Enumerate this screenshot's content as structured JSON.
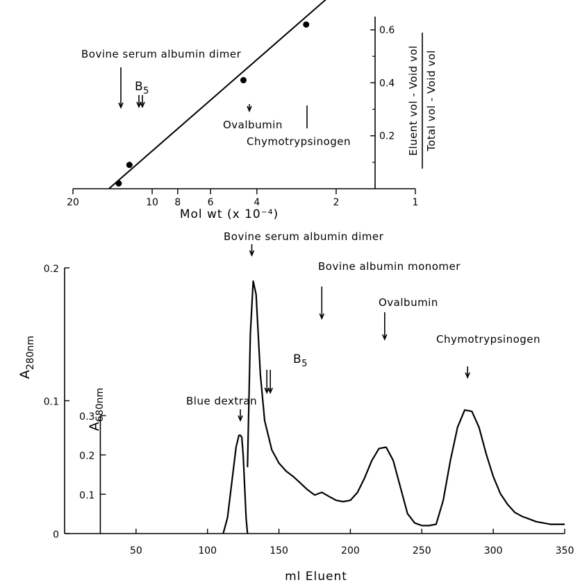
{
  "chart_data": [
    {
      "type": "scatter",
      "x_scale": "log",
      "x_reversed": true,
      "xlabel": "Mol  wt   (x 10⁻⁴)",
      "ylabel_numerator": "Eluent vol - Void vol",
      "ylabel_denominator": "Total vol - Void vol",
      "xlim": [
        1,
        20
      ],
      "ylim": [
        0,
        0.65
      ],
      "x_ticks": [
        20,
        10,
        8,
        6,
        4,
        2,
        1
      ],
      "y_ticks": [
        0.2,
        0.4,
        0.6
      ],
      "series": [
        {
          "x": [
            13.4,
            12.2,
            4.5,
            2.6
          ],
          "y": [
            0.02,
            0.09,
            0.41,
            0.62
          ]
        }
      ],
      "fit_line": {
        "x": [
          14.6,
          2.1
        ],
        "y": [
          0.0,
          0.73
        ]
      },
      "annotations": [
        {
          "id": "bsa_dimer",
          "text": "Bovine serum albumin dimer",
          "x": 13.4
        },
        {
          "id": "b5",
          "text": "B",
          "sub": "5",
          "x": 12.6
        },
        {
          "id": "ovalbumin",
          "text": "Ovalbumin",
          "x": 4.5
        },
        {
          "id": "chymo",
          "text": "Chymotrypsinogen",
          "x": 2.6
        }
      ]
    },
    {
      "type": "line",
      "xlabel": "ml  Eluent",
      "xlim": [
        0,
        350
      ],
      "x_ticks": [
        50,
        100,
        150,
        200,
        250,
        300,
        350
      ],
      "y_left": {
        "label_main": "A",
        "label_sub": "280nm",
        "lim": [
          0,
          0.2
        ],
        "ticks": [
          0,
          0.1,
          0.2
        ]
      },
      "y_right": {
        "label_main": "A",
        "label_sub": "680nm",
        "lim": [
          0,
          0.3
        ],
        "ticks": [
          0.1,
          0.2,
          0.3
        ],
        "axis_x": 25
      },
      "series": [
        {
          "axis": "a280",
          "x": [
            128,
            130,
            132,
            134,
            137,
            140,
            145,
            150,
            155,
            160,
            165,
            170,
            175,
            180,
            185,
            190,
            195,
            200,
            205,
            210,
            215,
            220,
            225,
            230,
            235,
            240,
            245,
            250,
            255,
            260,
            265,
            270,
            275,
            280,
            285,
            290,
            295,
            300,
            305,
            310,
            315,
            320,
            330,
            340,
            350
          ],
          "y": [
            0.05,
            0.15,
            0.19,
            0.18,
            0.12,
            0.085,
            0.063,
            0.053,
            0.047,
            0.043,
            0.038,
            0.033,
            0.029,
            0.031,
            0.028,
            0.025,
            0.024,
            0.025,
            0.031,
            0.042,
            0.055,
            0.064,
            0.065,
            0.055,
            0.035,
            0.015,
            0.008,
            0.006,
            0.006,
            0.007,
            0.025,
            0.055,
            0.08,
            0.093,
            0.092,
            0.08,
            0.06,
            0.043,
            0.03,
            0.022,
            0.016,
            0.013,
            0.009,
            0.007,
            0.007
          ]
        },
        {
          "axis": "a680",
          "x": [
            111,
            114,
            117,
            120,
            122,
            123,
            124,
            125,
            126,
            127,
            128
          ],
          "y": [
            0.0,
            0.04,
            0.13,
            0.22,
            0.25,
            0.25,
            0.245,
            0.2,
            0.12,
            0.04,
            0.0
          ]
        }
      ],
      "annotations": [
        {
          "id": "bsa_dimer",
          "text": "Bovine serum albumin dimer",
          "x": 131
        },
        {
          "id": "b5",
          "text": "B",
          "sub": "5",
          "x": 143
        },
        {
          "id": "bsa_mono",
          "text": "Bovine albumin monomer",
          "x": 180
        },
        {
          "id": "ovalbumin",
          "text": "Ovalbumin",
          "x": 224
        },
        {
          "id": "chymo",
          "text": "Chymotrypsinogen",
          "x": 282
        },
        {
          "id": "blue_dextran",
          "text": "Blue dextran",
          "x": 123
        }
      ]
    }
  ]
}
